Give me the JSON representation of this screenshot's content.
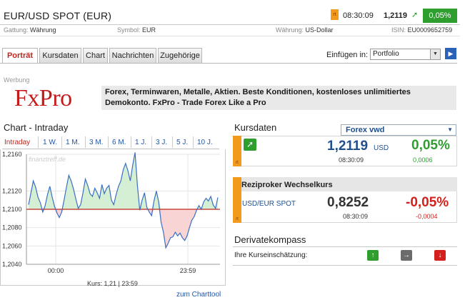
{
  "header": {
    "title": "EUR/USD SPOT (EUR)",
    "rt_badge": "rt",
    "time": "08:30:09",
    "price": "1,2119",
    "change_pct": "0,05%"
  },
  "meta": {
    "gattung_label": "Gattung:",
    "gattung_value": "Währung",
    "symbol_label": "Symbol:",
    "symbol_value": "EUR",
    "waehrung_label": "Währung:",
    "waehrung_value": "US-Dollar",
    "isin_label": "ISIN:",
    "isin_value": "EU0009652759"
  },
  "tabs": [
    {
      "label": "Porträt",
      "active": true
    },
    {
      "label": "Kursdaten",
      "active": false
    },
    {
      "label": "Chart",
      "active": false
    },
    {
      "label": "Nachrichten",
      "active": false
    },
    {
      "label": "Zugehörige",
      "active": false
    }
  ],
  "insert": {
    "label": "Einfügen in:",
    "selected": "Portfolio",
    "go": "▶"
  },
  "ad": {
    "label": "Werbung",
    "logo": "FxPro",
    "text": "Forex, Terminwaren, Metalle, Aktien. Beste Konditionen, kostenloses unlimitiertes Demokonto. FxPro - Trade Forex Like a Pro"
  },
  "chart": {
    "title": "Chart - Intraday",
    "ranges": [
      "Intraday",
      "1 W.",
      "1 M.",
      "3 M.",
      "6 M.",
      "1 J.",
      "3 J.",
      "5 J.",
      "10 J."
    ],
    "watermark": "finanztreff.de",
    "kurs_info": "Kurs: 1,21  |  23:59",
    "link": "zum Charttool"
  },
  "chart_data": {
    "type": "line",
    "x_ticks": [
      "00:00",
      "23:59"
    ],
    "y_ticks": [
      "1,2160",
      "1,2120",
      "1,2100",
      "1,2080",
      "1,2060",
      "1,2040"
    ],
    "ylim": [
      1.204,
      1.216
    ],
    "baseline": 1.21,
    "series": [
      {
        "values": [
          1.2105,
          1.2118,
          1.2131,
          1.2124,
          1.2113,
          1.2107,
          1.2097,
          1.2104,
          1.2116,
          1.2125,
          1.2113,
          1.2103,
          1.2096,
          1.2091,
          1.2097,
          1.211,
          1.2124,
          1.2137,
          1.2131,
          1.2122,
          1.2111,
          1.2101,
          1.2105,
          1.2118,
          1.2133,
          1.2126,
          1.2117,
          1.2114,
          1.2123,
          1.2118,
          1.2112,
          1.2127,
          1.2117,
          1.2123,
          1.2126,
          1.211,
          1.2105,
          1.2116,
          1.2125,
          1.2131,
          1.2143,
          1.215,
          1.2142,
          1.2131,
          1.2148,
          1.2162,
          1.2126,
          1.2099,
          1.211,
          1.2118,
          1.2102,
          1.2097,
          1.2093,
          1.2109,
          1.212,
          1.2108,
          1.2086,
          1.2075,
          1.2058,
          1.2063,
          1.2069,
          1.207,
          1.2075,
          1.2071,
          1.2074,
          1.2069,
          1.2066,
          1.2071,
          1.208,
          1.2088,
          1.2092,
          1.2099,
          1.2104,
          1.21,
          1.2108,
          1.2112,
          1.2109,
          1.2114,
          1.2105,
          1.2101,
          1.2113
        ]
      }
    ]
  },
  "kursdaten": {
    "title": "Kursdaten",
    "source": "Forex vwd",
    "price": "1,2119",
    "currency": "USD",
    "change_pct": "0,05%",
    "time": "08:30:09",
    "change_abs": "0,0006"
  },
  "reziprok": {
    "title": "Reziproker Wechselkurs",
    "label": "USD/EUR SPOT",
    "price": "0,8252",
    "change_pct": "-0,05%",
    "time": "08:30:09",
    "change_abs": "-0,0004"
  },
  "derivatekompass": {
    "title": "Derivatekompass",
    "label": "Ihre Kurseinschätzung:"
  },
  "colors": {
    "up": "#2e9e2e",
    "down": "#d4201c",
    "link": "#2256a8",
    "accent_orange": "#f29a1d",
    "logo_red": "#c41a1a"
  }
}
